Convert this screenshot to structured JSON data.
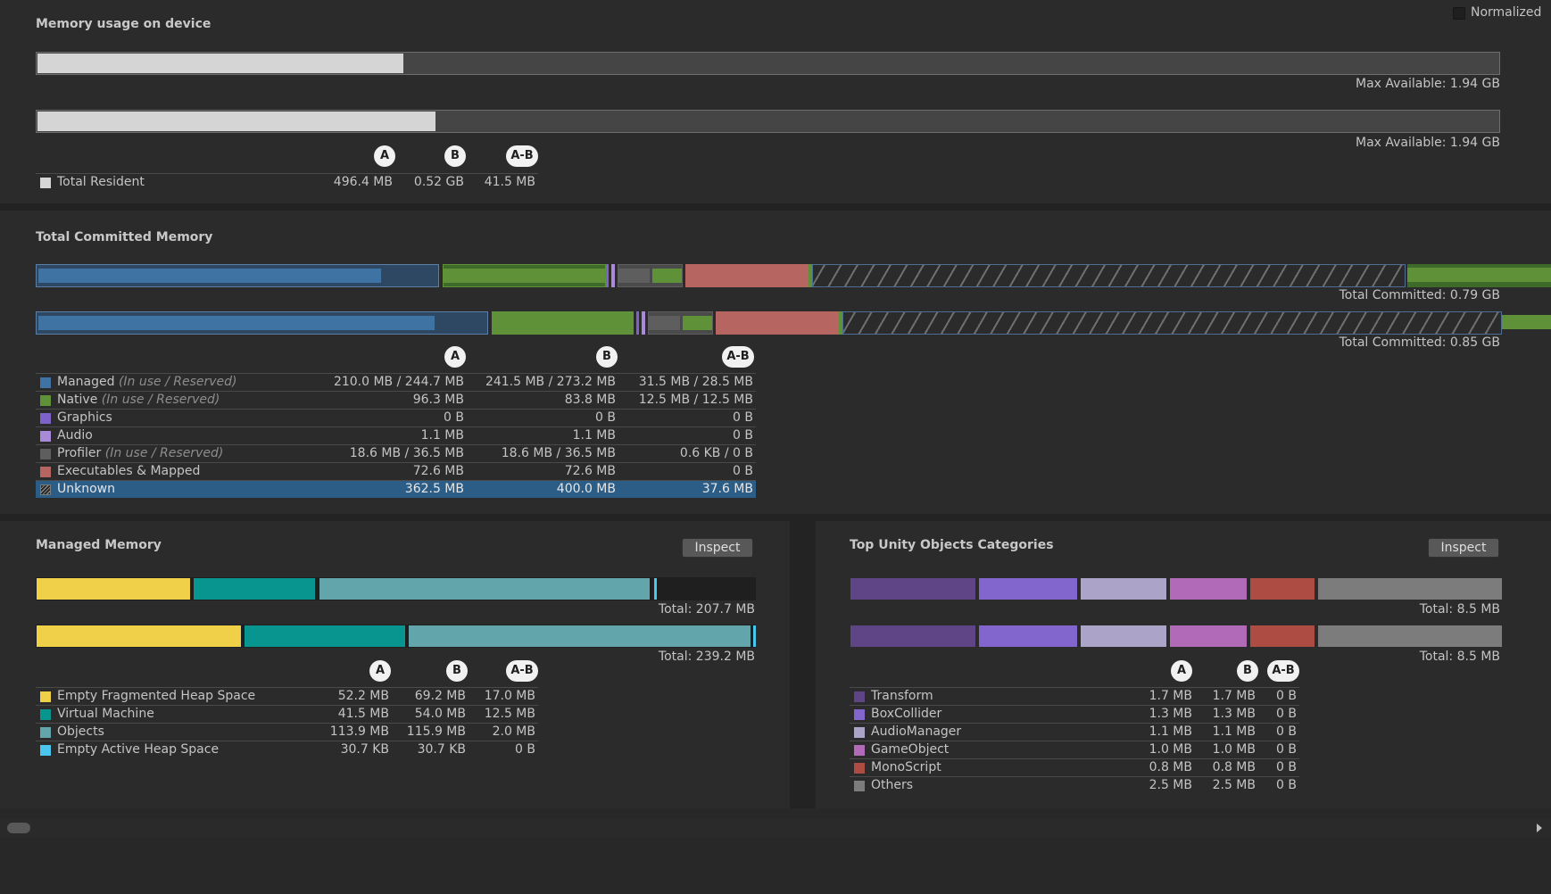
{
  "normalized": {
    "label": "Normalized",
    "checked": false
  },
  "device": {
    "title": "Memory usage on device",
    "barA": {
      "fill": 0.25,
      "caption": "Max Available: 1.94 GB"
    },
    "barB": {
      "fill": 0.272,
      "caption": "Max Available: 1.94 GB"
    },
    "cols": [
      "A",
      "B",
      "A-B"
    ],
    "rows": [
      {
        "label": "Total Resident",
        "color": "#d6d6d6",
        "a": "496.4 MB",
        "b": "0.52 GB",
        "diff": "41.5 MB"
      }
    ]
  },
  "committed": {
    "title": "Total Committed Memory",
    "captionA": "Total Committed: 0.79 GB",
    "captionB": "Total Committed: 0.85 GB",
    "cols": [
      "A",
      "B",
      "A-B"
    ],
    "rows": [
      {
        "label": "Managed",
        "note": "(In use / Reserved)",
        "color": "#3f73a3",
        "a": "210.0 MB / 244.7 MB",
        "b": "241.5 MB / 273.2 MB",
        "diff": "31.5 MB / 28.5 MB"
      },
      {
        "label": "Native",
        "note": "(In use / Reserved)",
        "color": "#5f9238",
        "a": "96.3 MB",
        "b": "83.8 MB",
        "diff": "12.5 MB / 12.5 MB"
      },
      {
        "label": "Graphics",
        "note": "",
        "color": "#7d63c9",
        "a": "0 B",
        "b": "0 B",
        "diff": "0 B"
      },
      {
        "label": "Audio",
        "note": "",
        "color": "#a88ad8",
        "a": "1.1 MB",
        "b": "1.1 MB",
        "diff": "0 B"
      },
      {
        "label": "Profiler",
        "note": "(In use / Reserved)",
        "color": "#5e5e5e",
        "a": "18.6 MB / 36.5 MB",
        "b": "18.6 MB / 36.5 MB",
        "diff": "0.6 KB / 0 B"
      },
      {
        "label": "Executables & Mapped",
        "note": "",
        "color": "#b66560",
        "a": "72.6 MB",
        "b": "72.6 MB",
        "diff": "0 B"
      },
      {
        "label": "Unknown",
        "note": "",
        "color": "hatch",
        "a": "362.5 MB",
        "b": "400.0 MB",
        "diff": "37.6 MB",
        "selected": true
      }
    ]
  },
  "managed": {
    "title": "Managed Memory",
    "inspect": "Inspect",
    "captionA": "Total: 207.7 MB",
    "captionB": "Total: 239.2 MB",
    "cols": [
      "A",
      "B",
      "A-B"
    ],
    "rows": [
      {
        "label": "Empty Fragmented Heap Space",
        "color": "#f0cf49",
        "a": "52.2 MB",
        "b": "69.2 MB",
        "diff": "17.0 MB"
      },
      {
        "label": "Virtual Machine",
        "color": "#08958f",
        "a": "41.5 MB",
        "b": "54.0 MB",
        "diff": "12.5 MB"
      },
      {
        "label": "Objects",
        "color": "#62a5aa",
        "a": "113.9 MB",
        "b": "115.9 MB",
        "diff": "2.0 MB"
      },
      {
        "label": "Empty Active Heap Space",
        "color": "#48c6ee",
        "a": "30.7 KB",
        "b": "30.7 KB",
        "diff": "0 B"
      }
    ]
  },
  "topUnity": {
    "title": "Top Unity Objects Categories",
    "inspect": "Inspect",
    "captionA": "Total: 8.5 MB",
    "captionB": "Total: 8.5 MB",
    "cols": [
      "A",
      "B",
      "A-B"
    ],
    "rows": [
      {
        "label": "Transform",
        "color": "#5f4585",
        "a": "1.7 MB",
        "b": "1.7 MB",
        "diff": "0 B"
      },
      {
        "label": "BoxCollider",
        "color": "#8366cd",
        "a": "1.3 MB",
        "b": "1.3 MB",
        "diff": "0 B"
      },
      {
        "label": "AudioManager",
        "color": "#aca4c8",
        "a": "1.1 MB",
        "b": "1.1 MB",
        "diff": "0 B"
      },
      {
        "label": "GameObject",
        "color": "#b06ab8",
        "a": "1.0 MB",
        "b": "1.0 MB",
        "diff": "0 B"
      },
      {
        "label": "MonoScript",
        "color": "#ad4c43",
        "a": "0.8 MB",
        "b": "0.8 MB",
        "diff": "0 B"
      },
      {
        "label": "Others",
        "color": "#7c7c7c",
        "a": "2.5 MB",
        "b": "2.5 MB",
        "diff": "0 B"
      }
    ]
  }
}
